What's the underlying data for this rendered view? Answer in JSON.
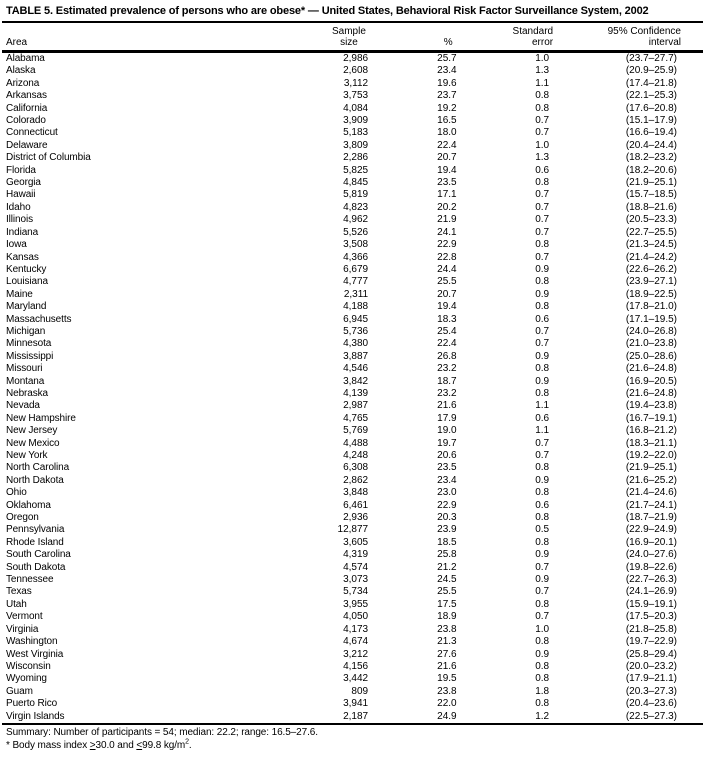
{
  "title": "TABLE 5. Estimated prevalence of persons who are obese* — United States, Behavioral Risk Factor Surveillance System, 2002",
  "colors": {
    "text": "#000000",
    "background": "#ffffff",
    "rule": "#000000"
  },
  "table": {
    "columns": {
      "area": "Area",
      "sample_line1": "Sample",
      "sample_line2": "size",
      "percent": "%",
      "se_line1": "Standard",
      "se_line2": "error",
      "ci_line1": "95% Confidence",
      "ci_line2": "interval"
    },
    "rows": [
      [
        "Alabama",
        "2,986",
        "25.7",
        "1.0",
        "(23.7–27.7)"
      ],
      [
        "Alaska",
        "2,608",
        "23.4",
        "1.3",
        "(20.9–25.9)"
      ],
      [
        "Arizona",
        "3,112",
        "19.6",
        "1.1",
        "(17.4–21.8)"
      ],
      [
        "Arkansas",
        "3,753",
        "23.7",
        "0.8",
        "(22.1–25.3)"
      ],
      [
        "California",
        "4,084",
        "19.2",
        "0.8",
        "(17.6–20.8)"
      ],
      [
        "Colorado",
        "3,909",
        "16.5",
        "0.7",
        "(15.1–17.9)"
      ],
      [
        "Connecticut",
        "5,183",
        "18.0",
        "0.7",
        "(16.6–19.4)"
      ],
      [
        "Delaware",
        "3,809",
        "22.4",
        "1.0",
        "(20.4–24.4)"
      ],
      [
        "District of Columbia",
        "2,286",
        "20.7",
        "1.3",
        "(18.2–23.2)"
      ],
      [
        "Florida",
        "5,825",
        "19.4",
        "0.6",
        "(18.2–20.6)"
      ],
      [
        "Georgia",
        "4,845",
        "23.5",
        "0.8",
        "(21.9–25.1)"
      ],
      [
        "Hawaii",
        "5,819",
        "17.1",
        "0.7",
        "(15.7–18.5)"
      ],
      [
        "Idaho",
        "4,823",
        "20.2",
        "0.7",
        "(18.8–21.6)"
      ],
      [
        "Illinois",
        "4,962",
        "21.9",
        "0.7",
        "(20.5–23.3)"
      ],
      [
        "Indiana",
        "5,526",
        "24.1",
        "0.7",
        "(22.7–25.5)"
      ],
      [
        "Iowa",
        "3,508",
        "22.9",
        "0.8",
        "(21.3–24.5)"
      ],
      [
        "Kansas",
        "4,366",
        "22.8",
        "0.7",
        "(21.4–24.2)"
      ],
      [
        "Kentucky",
        "6,679",
        "24.4",
        "0.9",
        "(22.6–26.2)"
      ],
      [
        "Louisiana",
        "4,777",
        "25.5",
        "0.8",
        "(23.9–27.1)"
      ],
      [
        "Maine",
        "2,311",
        "20.7",
        "0.9",
        "(18.9–22.5)"
      ],
      [
        "Maryland",
        "4,188",
        "19.4",
        "0.8",
        "(17.8–21.0)"
      ],
      [
        "Massachusetts",
        "6,945",
        "18.3",
        "0.6",
        "(17.1–19.5)"
      ],
      [
        "Michigan",
        "5,736",
        "25.4",
        "0.7",
        "(24.0–26.8)"
      ],
      [
        "Minnesota",
        "4,380",
        "22.4",
        "0.7",
        "(21.0–23.8)"
      ],
      [
        "Mississippi",
        "3,887",
        "26.8",
        "0.9",
        "(25.0–28.6)"
      ],
      [
        "Missouri",
        "4,546",
        "23.2",
        "0.8",
        "(21.6–24.8)"
      ],
      [
        "Montana",
        "3,842",
        "18.7",
        "0.9",
        "(16.9–20.5)"
      ],
      [
        "Nebraska",
        "4,139",
        "23.2",
        "0.8",
        "(21.6–24.8)"
      ],
      [
        "Nevada",
        "2,987",
        "21.6",
        "1.1",
        "(19.4–23.8)"
      ],
      [
        "New Hampshire",
        "4,765",
        "17.9",
        "0.6",
        "(16.7–19.1)"
      ],
      [
        "New Jersey",
        "5,769",
        "19.0",
        "1.1",
        "(16.8–21.2)"
      ],
      [
        "New Mexico",
        "4,488",
        "19.7",
        "0.7",
        "(18.3–21.1)"
      ],
      [
        "New York",
        "4,248",
        "20.6",
        "0.7",
        "(19.2–22.0)"
      ],
      [
        "North Carolina",
        "6,308",
        "23.5",
        "0.8",
        "(21.9–25.1)"
      ],
      [
        "North Dakota",
        "2,862",
        "23.4",
        "0.9",
        "(21.6–25.2)"
      ],
      [
        "Ohio",
        "3,848",
        "23.0",
        "0.8",
        "(21.4–24.6)"
      ],
      [
        "Oklahoma",
        "6,461",
        "22.9",
        "0.6",
        "(21.7–24.1)"
      ],
      [
        "Oregon",
        "2,936",
        "20.3",
        "0.8",
        "(18.7–21.9)"
      ],
      [
        "Pennsylvania",
        "12,877",
        "23.9",
        "0.5",
        "(22.9–24.9)"
      ],
      [
        "Rhode Island",
        "3,605",
        "18.5",
        "0.8",
        "(16.9–20.1)"
      ],
      [
        "South Carolina",
        "4,319",
        "25.8",
        "0.9",
        "(24.0–27.6)"
      ],
      [
        "South Dakota",
        "4,574",
        "21.2",
        "0.7",
        "(19.8–22.6)"
      ],
      [
        "Tennessee",
        "3,073",
        "24.5",
        "0.9",
        "(22.7–26.3)"
      ],
      [
        "Texas",
        "5,734",
        "25.5",
        "0.7",
        "(24.1–26.9)"
      ],
      [
        "Utah",
        "3,955",
        "17.5",
        "0.8",
        "(15.9–19.1)"
      ],
      [
        "Vermont",
        "4,050",
        "18.9",
        "0.7",
        "(17.5–20.3)"
      ],
      [
        "Virginia",
        "4,173",
        "23.8",
        "1.0",
        "(21.8–25.8)"
      ],
      [
        "Washington",
        "4,674",
        "21.3",
        "0.8",
        "(19.7–22.9)"
      ],
      [
        "West Virginia",
        "3,212",
        "27.6",
        "0.9",
        "(25.8–29.4)"
      ],
      [
        "Wisconsin",
        "4,156",
        "21.6",
        "0.8",
        "(20.0–23.2)"
      ],
      [
        "Wyoming",
        "3,442",
        "19.5",
        "0.8",
        "(17.9–21.1)"
      ],
      [
        "Guam",
        "809",
        "23.8",
        "1.8",
        "(20.3–27.3)"
      ],
      [
        "Puerto Rico",
        "3,941",
        "22.0",
        "0.8",
        "(20.4–23.6)"
      ],
      [
        "Virgin Islands",
        "2,187",
        "24.9",
        "1.2",
        "(22.5–27.3)"
      ]
    ]
  },
  "summary": "Summary: Number of participants = 54; median: 22.2; range: 16.5–27.6.",
  "footnote": {
    "pre": "* Body mass index ",
    "gte_symbol": ">",
    "between": "30.0 and ",
    "lte_symbol": "<",
    "post": "99.8 kg/m",
    "superscript": "2",
    "end": "."
  }
}
